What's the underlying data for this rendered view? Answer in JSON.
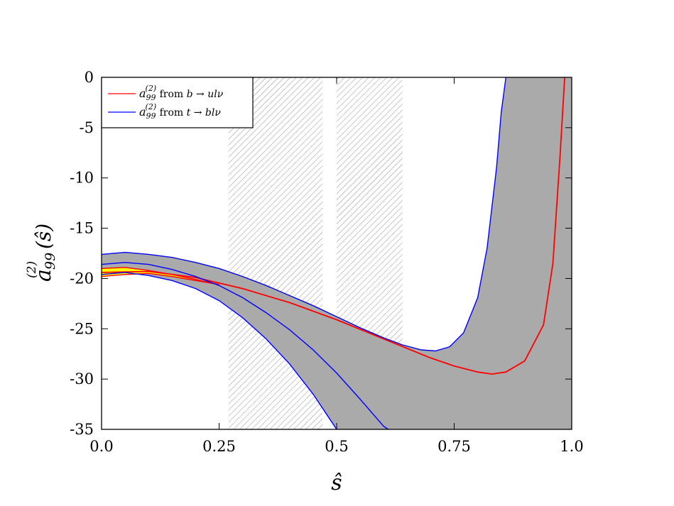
{
  "chart_data": {
    "type": "line",
    "xlabel": "ŝ",
    "ylabel": "(ŝ)",
    "ylabel_symbol": "a",
    "ylabel_sub": "99",
    "ylabel_sup": "(2)",
    "xlim": [
      0.0,
      1.0
    ],
    "ylim": [
      -35,
      0
    ],
    "x_ticks": [
      0.0,
      0.25,
      0.5,
      0.75,
      1.0
    ],
    "x_tick_labels": [
      "0.0",
      "0.25",
      "0.5",
      "0.75",
      "1.0"
    ],
    "y_ticks": [
      0,
      -5,
      -10,
      -15,
      -20,
      -25,
      -30,
      -35
    ],
    "y_tick_labels": [
      "0",
      "-5",
      "-10",
      "-15",
      "-20",
      "-25",
      "-30",
      "-35"
    ],
    "grid": false,
    "legend_position": "top-left",
    "legend": [
      {
        "symbol": "a",
        "sub": "99",
        "sup": "(2)",
        "text": " from ",
        "process_from": "b",
        "arrow": "→",
        "process_to": "ulν",
        "color": "#ff0000"
      },
      {
        "symbol": "a",
        "sub": "99",
        "sup": "(2)",
        "text": " from ",
        "process_from": "t",
        "arrow": "→",
        "process_to": "blν",
        "color": "#0000ff"
      }
    ],
    "hatched_regions": [
      [
        0.27,
        0.47
      ],
      [
        0.5,
        0.64
      ]
    ],
    "series": [
      {
        "key": "b_band_upper",
        "role": "band-edge",
        "color": "#ff0000",
        "x": [
          0.0,
          0.05,
          0.1,
          0.15,
          0.2,
          0.25
        ],
        "y": [
          -19.0,
          -18.9,
          -19.2,
          -19.6,
          -20.1,
          -20.6
        ]
      },
      {
        "key": "b_band_lower",
        "role": "band-edge",
        "color": "#ff0000",
        "x": [
          0.0,
          0.05,
          0.1,
          0.15,
          0.2,
          0.25
        ],
        "y": [
          -19.8,
          -19.6,
          -19.5,
          -19.8,
          -20.2,
          -20.6
        ]
      },
      {
        "key": "b_central",
        "role": "central",
        "color": "#ff0000",
        "x": [
          0.0,
          0.1,
          0.2,
          0.3,
          0.4,
          0.5,
          0.6,
          0.7,
          0.75,
          0.8,
          0.83,
          0.86,
          0.9,
          0.94,
          0.96,
          0.975,
          0.985
        ],
        "y": [
          -19.4,
          -19.3,
          -19.9,
          -21.0,
          -22.4,
          -24.1,
          -26.0,
          -27.9,
          -28.7,
          -29.3,
          -29.5,
          -29.3,
          -28.2,
          -24.6,
          -18.5,
          -8.0,
          0.0
        ]
      },
      {
        "key": "t_upper",
        "role": "band-edge",
        "color": "#0000ff",
        "x": [
          0.0,
          0.05,
          0.1,
          0.15,
          0.2,
          0.25,
          0.3,
          0.35,
          0.4,
          0.45,
          0.5,
          0.55,
          0.6,
          0.64,
          0.68,
          0.71,
          0.74,
          0.77,
          0.8,
          0.82,
          0.84,
          0.85,
          0.86
        ],
        "y": [
          -17.6,
          -17.4,
          -17.6,
          -17.9,
          -18.4,
          -19.0,
          -19.8,
          -20.7,
          -21.7,
          -22.7,
          -23.8,
          -24.9,
          -25.9,
          -26.6,
          -27.1,
          -27.2,
          -26.8,
          -25.4,
          -21.9,
          -17.0,
          -9.0,
          -3.5,
          0.0
        ]
      },
      {
        "key": "t_mid",
        "role": "band-edge",
        "color": "#0000ff",
        "x": [
          0.0,
          0.05,
          0.1,
          0.15,
          0.2,
          0.25,
          0.3,
          0.35,
          0.4,
          0.45,
          0.5,
          0.55,
          0.6,
          0.61
        ],
        "y": [
          -18.6,
          -18.4,
          -18.6,
          -19.1,
          -19.8,
          -20.7,
          -21.9,
          -23.4,
          -25.1,
          -27.1,
          -29.4,
          -32.0,
          -34.7,
          -35.0
        ]
      },
      {
        "key": "t_lower",
        "role": "band-edge",
        "color": "#0000ff",
        "x": [
          0.0,
          0.05,
          0.1,
          0.15,
          0.2,
          0.25,
          0.3,
          0.35,
          0.4,
          0.45,
          0.48,
          0.5
        ],
        "y": [
          -19.6,
          -19.4,
          -19.7,
          -20.2,
          -21.0,
          -22.2,
          -23.9,
          -26.0,
          -28.5,
          -31.5,
          -33.6,
          -35.0
        ]
      }
    ],
    "gray_band": {
      "upper_key": "t_upper",
      "upper_tail": [
        [
          0.86,
          0.0
        ],
        [
          1.0,
          0.0
        ]
      ],
      "lower_key": "t_lower",
      "lower_tail": [
        [
          0.5,
          -35.0
        ],
        [
          1.0,
          -35.0
        ]
      ],
      "fill": "#aaaaaa"
    },
    "yellow_band": {
      "upper_key": "b_band_upper",
      "lower_key": "b_band_lower",
      "fill": "#ffff00"
    }
  }
}
